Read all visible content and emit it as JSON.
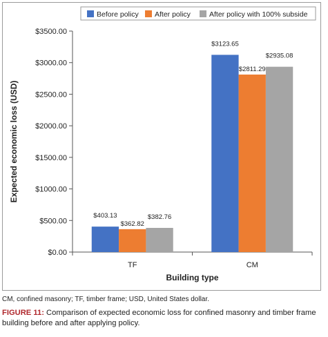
{
  "chart_data": {
    "type": "bar",
    "categories": [
      "TF",
      "CM"
    ],
    "series": [
      {
        "name": "Before policy",
        "color": "#4472c4",
        "values": [
          403.13,
          3123.65
        ],
        "labels": [
          "$403.13",
          "$3123.65"
        ]
      },
      {
        "name": "After policy",
        "color": "#ed7d31",
        "values": [
          362.82,
          2811.29
        ],
        "labels": [
          "$362.82",
          "$2811.29"
        ]
      },
      {
        "name": "After policy with 100% subside",
        "color": "#a5a5a5",
        "values": [
          382.76,
          2935.08
        ],
        "labels": [
          "$382.76",
          "$2935.08"
        ]
      }
    ],
    "ylim": [
      0,
      3500
    ],
    "yticks": [
      0,
      500,
      1000,
      1500,
      2000,
      2500,
      3000,
      3500
    ],
    "ytick_labels": [
      "$0.00",
      "$500.00",
      "$1000.00",
      "$1500.00",
      "$2000.00",
      "$2500.00",
      "$3000.00",
      "$3500.00"
    ],
    "xlabel": "Building type",
    "ylabel": "Expected economic loss (USD)",
    "legend_position": "top",
    "grid": false
  },
  "footnote": "CM, confined masonry; TF, timber frame; USD, United States dollar.",
  "caption": {
    "figure_id": "FIGURE 11:",
    "text": " Comparison of expected economic loss for confined masonry and timber frame building before and after applying policy."
  }
}
